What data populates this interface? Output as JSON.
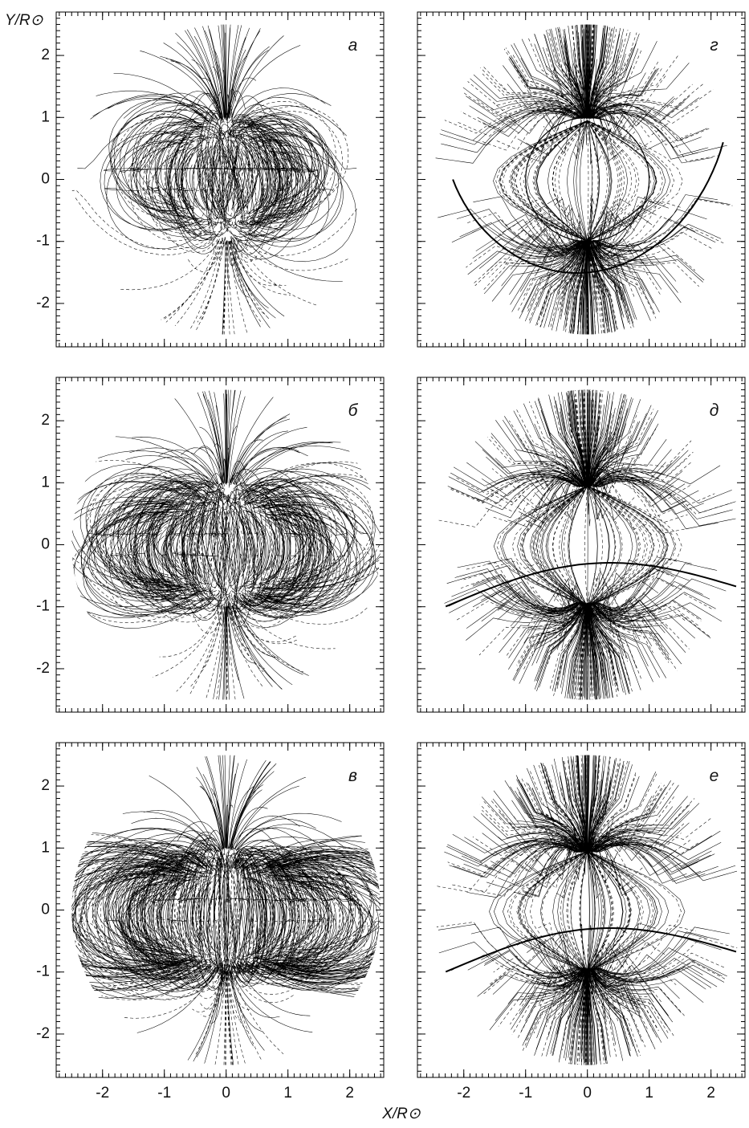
{
  "figure": {
    "xlabel": "X/R⊙",
    "ylabel": "Y/R⊙"
  },
  "chart_data": [
    {
      "type": "fieldlines",
      "label": "а",
      "xlim": [
        -2.75,
        2.55
      ],
      "ylim": [
        -2.7,
        2.7
      ],
      "xticks": [
        -2,
        -1,
        0,
        1,
        2
      ],
      "yticks": [
        -2,
        -1,
        0,
        1,
        2
      ]
    },
    {
      "type": "fieldlines",
      "label": "г",
      "xlim": [
        -2.75,
        2.55
      ],
      "ylim": [
        -2.7,
        2.7
      ],
      "xticks": [
        -2,
        -1,
        0,
        1,
        2
      ],
      "yticks": [
        -2,
        -1,
        0,
        1,
        2
      ]
    },
    {
      "type": "fieldlines",
      "label": "б",
      "xlim": [
        -2.75,
        2.55
      ],
      "ylim": [
        -2.7,
        2.7
      ],
      "xticks": [
        -2,
        -1,
        0,
        1,
        2
      ],
      "yticks": [
        -2,
        -1,
        0,
        1,
        2
      ]
    },
    {
      "type": "fieldlines",
      "label": "д",
      "xlim": [
        -2.75,
        2.55
      ],
      "ylim": [
        -2.7,
        2.7
      ],
      "xticks": [
        -2,
        -1,
        0,
        1,
        2
      ],
      "yticks": [
        -2,
        -1,
        0,
        1,
        2
      ]
    },
    {
      "type": "fieldlines",
      "label": "в",
      "xlim": [
        -2.75,
        2.55
      ],
      "ylim": [
        -2.7,
        2.7
      ],
      "xticks": [
        -2,
        -1,
        0,
        1,
        2
      ],
      "yticks": [
        -2,
        -1,
        0,
        1,
        2
      ]
    },
    {
      "type": "fieldlines",
      "label": "е",
      "xlim": [
        -2.75,
        2.55
      ],
      "ylim": [
        -2.7,
        2.7
      ],
      "xticks": [
        -2,
        -1,
        0,
        1,
        2
      ],
      "yticks": [
        -2,
        -1,
        0,
        1,
        2
      ]
    }
  ]
}
